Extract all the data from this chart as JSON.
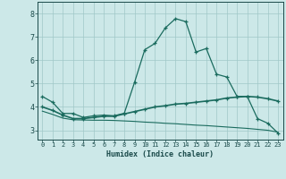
{
  "xlabel": "Humidex (Indice chaleur)",
  "background_color": "#cce8e8",
  "grid_color": "#a0c8c8",
  "line_color": "#1a6b5e",
  "xlim": [
    -0.5,
    23.5
  ],
  "ylim": [
    2.6,
    8.5
  ],
  "xticks": [
    0,
    1,
    2,
    3,
    4,
    5,
    6,
    7,
    8,
    9,
    10,
    11,
    12,
    13,
    14,
    15,
    16,
    17,
    18,
    19,
    20,
    21,
    22,
    23
  ],
  "yticks": [
    3,
    4,
    5,
    6,
    7,
    8
  ],
  "series1_x": [
    0,
    1,
    2,
    3,
    4,
    5,
    6,
    7,
    8,
    9,
    10,
    11,
    12,
    13,
    14,
    15,
    16,
    17,
    18,
    19,
    20,
    21,
    22,
    23
  ],
  "series1_y": [
    4.45,
    4.2,
    3.72,
    3.72,
    3.55,
    3.62,
    3.65,
    3.62,
    3.73,
    5.05,
    6.45,
    6.72,
    7.38,
    7.78,
    7.65,
    6.35,
    6.5,
    5.4,
    5.28,
    4.45,
    4.45,
    3.5,
    3.3,
    2.88
  ],
  "series2_x": [
    0,
    1,
    2,
    3,
    4,
    5,
    6,
    7,
    8,
    9,
    10,
    11,
    12,
    13,
    14,
    15,
    16,
    17,
    18,
    19,
    20,
    21,
    22,
    23
  ],
  "series2_y": [
    4.0,
    3.85,
    3.65,
    3.5,
    3.5,
    3.55,
    3.6,
    3.6,
    3.7,
    3.8,
    3.9,
    4.0,
    4.05,
    4.12,
    4.15,
    4.2,
    4.25,
    4.3,
    4.38,
    4.42,
    4.45,
    4.42,
    4.35,
    4.25
  ],
  "series3_x": [
    0,
    1,
    2,
    3,
    4,
    5,
    6,
    7,
    8,
    9,
    10,
    11,
    12,
    13,
    14,
    15,
    16,
    17,
    18,
    19,
    20,
    21,
    22,
    23
  ],
  "series3_y": [
    3.82,
    3.68,
    3.52,
    3.45,
    3.44,
    3.43,
    3.43,
    3.42,
    3.4,
    3.38,
    3.35,
    3.33,
    3.3,
    3.28,
    3.25,
    3.22,
    3.2,
    3.17,
    3.14,
    3.11,
    3.08,
    3.04,
    3.0,
    2.92
  ]
}
